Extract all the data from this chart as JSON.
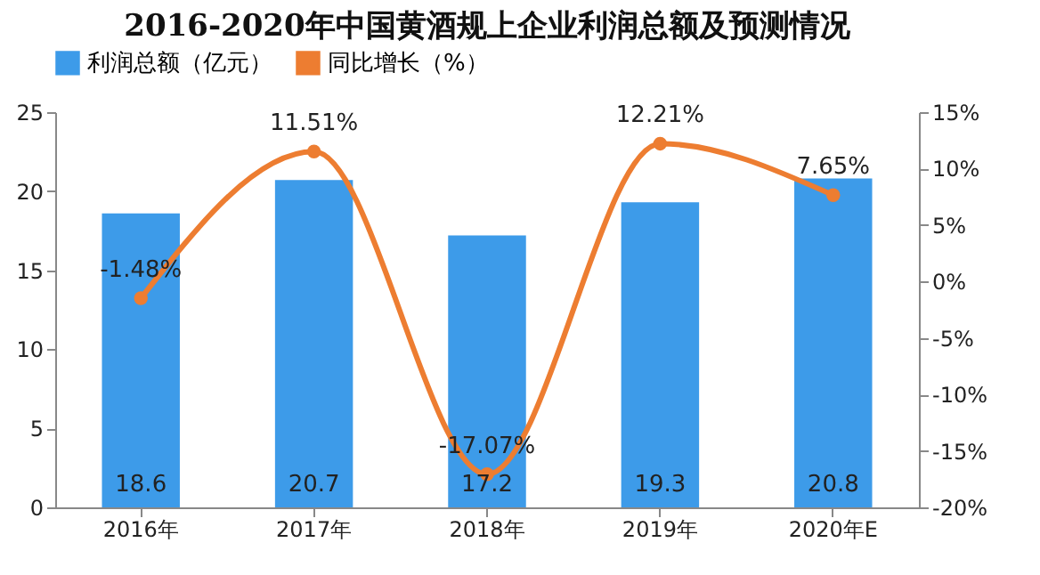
{
  "chart_data": {
    "type": "bar",
    "title": "2016-2020年中国黄酒规上企业利润总额及预测情况",
    "categories": [
      "2016年",
      "2017年",
      "2018年",
      "2019年",
      "2020年E"
    ],
    "series": [
      {
        "name": "利润总额（亿元）",
        "color": "#3d9be9",
        "values": [
          18.6,
          20.7,
          17.2,
          19.3,
          20.8
        ],
        "value_labels": [
          "18.6",
          "20.7",
          "17.2",
          "19.3",
          "20.8"
        ]
      },
      {
        "name": "同比增长（%）",
        "type": "line",
        "axis": "y2",
        "color": "#ed7d31",
        "values": [
          -1.48,
          11.51,
          -17.07,
          12.21,
          7.65
        ],
        "value_labels": [
          "-1.48%",
          "11.51%",
          "-17.07%",
          "12.21%",
          "7.65%"
        ]
      }
    ],
    "ylim": [
      0,
      25
    ],
    "yticks": [
      0,
      5,
      10,
      15,
      20,
      25
    ],
    "y2lim": [
      -20,
      15
    ],
    "y2ticks": [
      {
        "value": -20,
        "label": "-20%"
      },
      {
        "value": -15,
        "label": "-15%"
      },
      {
        "value": -10,
        "label": "-10%"
      },
      {
        "value": -5,
        "label": "-5%"
      },
      {
        "value": 0,
        "label": "0%"
      },
      {
        "value": 5,
        "label": "5%"
      },
      {
        "value": 10,
        "label": "10%"
      },
      {
        "value": 15,
        "label": "15%"
      }
    ],
    "legend": "top",
    "grid": false,
    "marker": "circle",
    "line_style": "solid"
  }
}
